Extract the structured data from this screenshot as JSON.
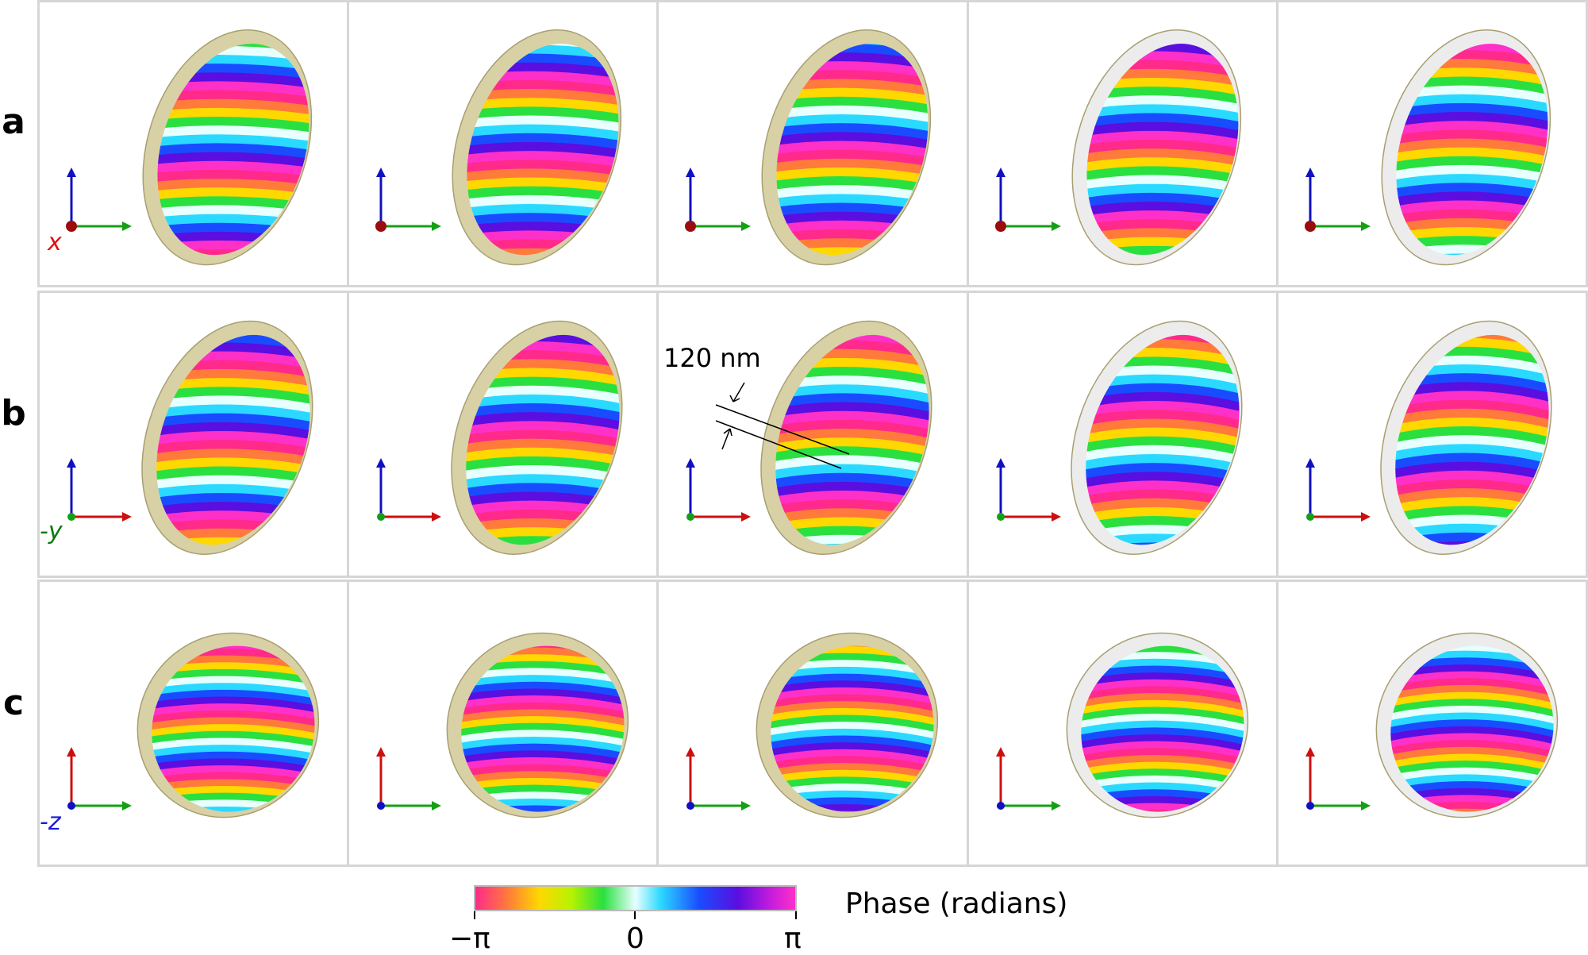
{
  "rows": [
    {
      "label": "a",
      "axis_label": "x",
      "axis_color": "#e01010"
    },
    {
      "label": "b",
      "axis_label": "-y",
      "axis_color": "#0a7a0a"
    },
    {
      "label": "c",
      "axis_label": "-z",
      "axis_color": "#1a1ad8"
    }
  ],
  "annotation": {
    "scale_label": "120 nm"
  },
  "colorbar": {
    "title": "Phase (radians)",
    "ticks": [
      "−π",
      "0",
      "π"
    ],
    "colors": [
      "#ff2a8a",
      "#ff7a3b",
      "#ffd800",
      "#2ae040",
      "#e8ffff",
      "#2ad9ff",
      "#1a4cff",
      "#5a0ee0",
      "#ff30c8"
    ]
  },
  "colors": {
    "shell": "#d8d1a6",
    "panel_border": "#d6d6d6",
    "axis_x": "#cc1010",
    "axis_y": "#14a014",
    "axis_z": "#1010c0"
  }
}
